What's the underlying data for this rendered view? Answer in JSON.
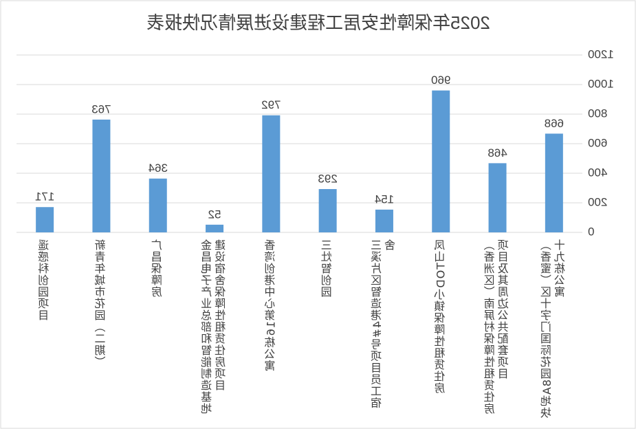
{
  "chart_data": {
    "type": "bar",
    "title": "2025年保障性安居工程建设进展情况快报表",
    "categories": [
      "（香蜜）区十字门国际花园8A地块十九栋公寓",
      "（香洲区）南屏村保障性租赁住房项目及其周边公共配套项目",
      "凤山TOD小镇保障性租赁住房",
      "三溪片区智造港4#号项目员工宿舍",
      "三灶智创园",
      "香湾创港中心第16栋公寓",
      "金昌电子产业总部和智能制造基地建设宿舍保障性租赁住房项目",
      "广昌保障房",
      "新青年城市花园（二期）",
      "遥感科创园项目"
    ],
    "values": [
      668,
      468,
      960,
      154,
      293,
      792,
      52,
      364,
      763,
      171
    ],
    "color": "#5b9bd5",
    "ylim": [
      0,
      1200
    ],
    "yticks": [
      0,
      200,
      400,
      600,
      800,
      1000,
      1200
    ],
    "grid": true
  }
}
